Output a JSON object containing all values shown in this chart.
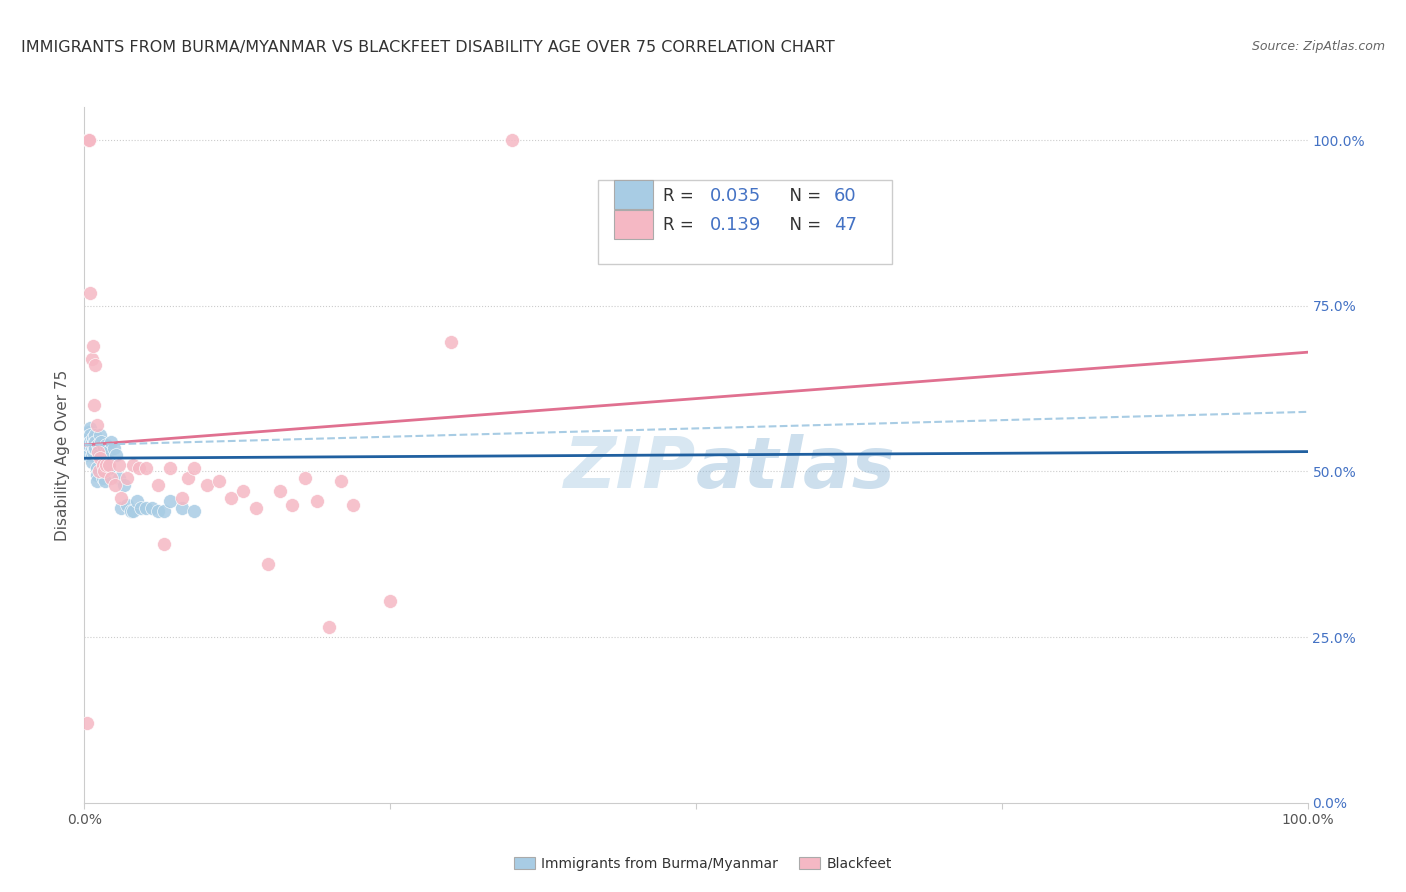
{
  "title": "IMMIGRANTS FROM BURMA/MYANMAR VS BLACKFEET DISABILITY AGE OVER 75 CORRELATION CHART",
  "source": "Source: ZipAtlas.com",
  "ylabel": "Disability Age Over 75",
  "xlim": [
    0.0,
    1.0
  ],
  "ylim": [
    0.0,
    1.05
  ],
  "blue_R": "0.035",
  "blue_N": "60",
  "pink_R": "0.139",
  "pink_N": "47",
  "blue_color": "#a8cce4",
  "pink_color": "#f5b8c4",
  "blue_line_color": "#2060a0",
  "pink_line_color": "#e07090",
  "watermark_color": "#b8d4e8",
  "legend_blue_label": "Immigrants from Burma/Myanmar",
  "legend_pink_label": "Blackfeet",
  "blue_scatter_x": [
    0.001,
    0.001,
    0.002,
    0.002,
    0.002,
    0.002,
    0.003,
    0.003,
    0.003,
    0.003,
    0.004,
    0.004,
    0.004,
    0.005,
    0.005,
    0.005,
    0.006,
    0.006,
    0.006,
    0.006,
    0.007,
    0.007,
    0.007,
    0.008,
    0.008,
    0.009,
    0.009,
    0.009,
    0.01,
    0.01,
    0.01,
    0.011,
    0.012,
    0.012,
    0.013,
    0.014,
    0.015,
    0.016,
    0.017,
    0.018,
    0.019,
    0.02,
    0.022,
    0.024,
    0.026,
    0.028,
    0.03,
    0.032,
    0.035,
    0.038,
    0.04,
    0.043,
    0.046,
    0.05,
    0.055,
    0.06,
    0.065,
    0.07,
    0.08,
    0.09
  ],
  "blue_scatter_y": [
    0.53,
    0.545,
    0.56,
    0.55,
    0.54,
    0.53,
    0.555,
    0.545,
    0.535,
    0.525,
    0.56,
    0.55,
    0.54,
    0.565,
    0.555,
    0.545,
    0.545,
    0.535,
    0.525,
    0.515,
    0.55,
    0.54,
    0.53,
    0.545,
    0.535,
    0.555,
    0.545,
    0.535,
    0.505,
    0.495,
    0.485,
    0.54,
    0.535,
    0.525,
    0.555,
    0.545,
    0.49,
    0.535,
    0.485,
    0.54,
    0.53,
    0.505,
    0.545,
    0.535,
    0.525,
    0.49,
    0.445,
    0.48,
    0.45,
    0.44,
    0.44,
    0.455,
    0.445,
    0.445,
    0.445,
    0.44,
    0.44,
    0.455,
    0.445,
    0.44
  ],
  "pink_scatter_x": [
    0.002,
    0.003,
    0.004,
    0.004,
    0.005,
    0.006,
    0.007,
    0.008,
    0.009,
    0.01,
    0.011,
    0.012,
    0.013,
    0.015,
    0.016,
    0.018,
    0.02,
    0.022,
    0.025,
    0.028,
    0.03,
    0.035,
    0.04,
    0.045,
    0.05,
    0.06,
    0.065,
    0.07,
    0.08,
    0.085,
    0.09,
    0.1,
    0.11,
    0.12,
    0.13,
    0.14,
    0.15,
    0.16,
    0.17,
    0.18,
    0.19,
    0.2,
    0.21,
    0.22,
    0.25,
    0.3,
    0.35
  ],
  "pink_scatter_y": [
    0.12,
    1.0,
    1.0,
    1.0,
    0.77,
    0.67,
    0.69,
    0.6,
    0.66,
    0.57,
    0.53,
    0.5,
    0.52,
    0.51,
    0.5,
    0.51,
    0.51,
    0.49,
    0.48,
    0.51,
    0.46,
    0.49,
    0.51,
    0.505,
    0.505,
    0.48,
    0.39,
    0.505,
    0.46,
    0.49,
    0.505,
    0.48,
    0.485,
    0.46,
    0.47,
    0.445,
    0.36,
    0.47,
    0.45,
    0.49,
    0.455,
    0.265,
    0.485,
    0.45,
    0.305,
    0.695,
    1.0
  ],
  "blue_trend_y_start": 0.52,
  "blue_trend_y_end": 0.53,
  "pink_trend_y_start": 0.54,
  "pink_trend_y_end": 0.68,
  "grid_color": "#cccccc",
  "bg_color": "#ffffff",
  "title_fontsize": 11.5,
  "axis_label_fontsize": 11,
  "tick_fontsize": 10,
  "marker_size": 100,
  "r_text_color": "#333333",
  "n_text_color": "#4472c4",
  "right_tick_color": "#4472c4"
}
